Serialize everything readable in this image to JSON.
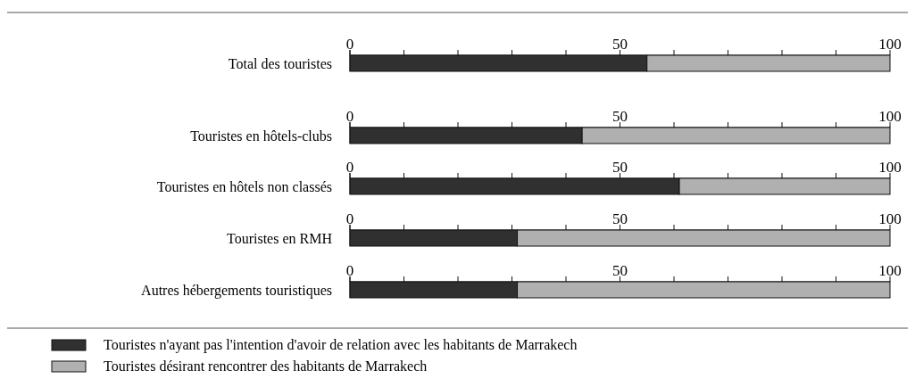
{
  "chart_data": [
    {
      "type": "bar",
      "orientation": "horizontal",
      "stacked": true,
      "categories": [
        "Total des touristes"
      ],
      "series": [
        {
          "color": "#303030",
          "values": [
            55
          ]
        },
        {
          "color": "#b0b0b0",
          "values": [
            45
          ]
        }
      ],
      "xlim": [
        0,
        100
      ],
      "xticks": [
        0,
        {
          "value": 10,
          "label": null
        },
        {
          "value": 20,
          "label": null
        },
        {
          "value": 30,
          "label": null
        },
        {
          "value": 40,
          "label": null
        },
        50,
        {
          "value": 60,
          "label": null
        },
        {
          "value": 70,
          "label": null
        },
        {
          "value": 80,
          "label": null
        },
        {
          "value": 90,
          "label": null
        },
        100
      ]
    },
    {
      "type": "bar",
      "orientation": "horizontal",
      "stacked": true,
      "categories": [
        "Touristes en hôtels-clubs"
      ],
      "series": [
        {
          "color": "#303030",
          "values": [
            43
          ]
        },
        {
          "color": "#b0b0b0",
          "values": [
            57
          ]
        }
      ],
      "xlim": [
        0,
        100
      ],
      "xticks": [
        0,
        {
          "value": 10,
          "label": null
        },
        {
          "value": 20,
          "label": null
        },
        {
          "value": 30,
          "label": null
        },
        {
          "value": 40,
          "label": null
        },
        50,
        {
          "value": 60,
          "label": null
        },
        {
          "value": 70,
          "label": null
        },
        {
          "value": 80,
          "label": null
        },
        {
          "value": 90,
          "label": null
        },
        100
      ]
    },
    {
      "type": "bar",
      "orientation": "horizontal",
      "stacked": true,
      "categories": [
        "Touristes en hôtels non classés"
      ],
      "series": [
        {
          "color": "#303030",
          "values": [
            61
          ]
        },
        {
          "color": "#b0b0b0",
          "values": [
            39
          ]
        }
      ],
      "xlim": [
        0,
        100
      ],
      "xticks": [
        0,
        {
          "value": 10,
          "label": null
        },
        {
          "value": 20,
          "label": null
        },
        {
          "value": 30,
          "label": null
        },
        {
          "value": 40,
          "label": null
        },
        50,
        {
          "value": 60,
          "label": null
        },
        {
          "value": 70,
          "label": null
        },
        {
          "value": 80,
          "label": null
        },
        {
          "value": 90,
          "label": null
        },
        100
      ]
    },
    {
      "type": "bar",
      "orientation": "horizontal",
      "stacked": true,
      "categories": [
        "Touristes en RMH"
      ],
      "series": [
        {
          "color": "#303030",
          "values": [
            31
          ]
        },
        {
          "color": "#b0b0b0",
          "values": [
            69
          ]
        }
      ],
      "xlim": [
        0,
        100
      ],
      "xticks": [
        0,
        {
          "value": 10,
          "label": null
        },
        {
          "value": 20,
          "label": null
        },
        {
          "value": 30,
          "label": null
        },
        {
          "value": 40,
          "label": null
        },
        50,
        {
          "value": 60,
          "label": null
        },
        {
          "value": 70,
          "label": null
        },
        {
          "value": 80,
          "label": null
        },
        {
          "value": 90,
          "label": null
        },
        100
      ]
    },
    {
      "type": "bar",
      "orientation": "horizontal",
      "stacked": true,
      "categories": [
        "Autres hébergements touristiques"
      ],
      "series": [
        {
          "name": "Touristes n'ayant pas l'intention d'avoir de relation avec les habitants de Marrakech",
          "color": "#303030",
          "values": [
            31
          ]
        },
        {
          "name": "Touristes désirant rencontrer des habitants de Marrakech",
          "color": "#b0b0b0",
          "values": [
            69
          ]
        }
      ],
      "xlim": [
        0,
        100
      ],
      "xticks": [
        0,
        {
          "value": 10,
          "label": null
        },
        {
          "value": 20,
          "label": null
        },
        {
          "value": 30,
          "label": null
        },
        {
          "value": 40,
          "label": null
        },
        50,
        {
          "value": 60,
          "label": null
        },
        {
          "value": 70,
          "label": null
        },
        {
          "value": 80,
          "label": null
        },
        {
          "value": 90,
          "label": null
        },
        100
      ],
      "legend": "bottom"
    }
  ]
}
